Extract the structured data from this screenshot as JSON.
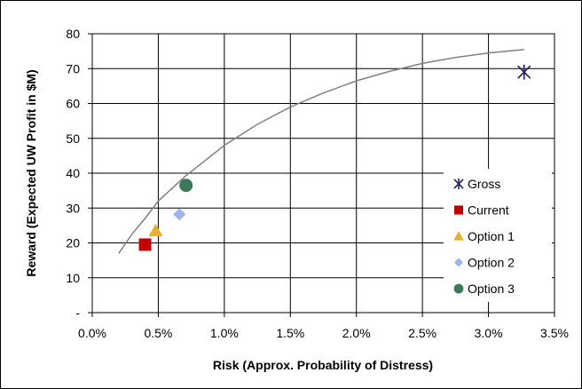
{
  "chart_data": {
    "type": "scatter",
    "xlabel": "Risk (Approx. Probability of Distress)",
    "ylabel": "Reward (Expected UW Profit in $M)",
    "xlim": [
      0.0,
      0.035
    ],
    "ylim": [
      0,
      80
    ],
    "x_ticks": [
      {
        "value": 0.0,
        "label": "0.0%"
      },
      {
        "value": 0.005,
        "label": "0.5%"
      },
      {
        "value": 0.01,
        "label": "1.0%"
      },
      {
        "value": 0.015,
        "label": "1.5%"
      },
      {
        "value": 0.02,
        "label": "2.0%"
      },
      {
        "value": 0.025,
        "label": "2.5%"
      },
      {
        "value": 0.03,
        "label": "3.0%"
      },
      {
        "value": 0.035,
        "label": "3.5%"
      }
    ],
    "y_ticks": [
      {
        "value": 0,
        "label": "-"
      },
      {
        "value": 10,
        "label": "10"
      },
      {
        "value": 20,
        "label": "20"
      },
      {
        "value": 30,
        "label": "30"
      },
      {
        "value": 40,
        "label": "40"
      },
      {
        "value": 50,
        "label": "50"
      },
      {
        "value": 60,
        "label": "60"
      },
      {
        "value": 70,
        "label": "70"
      },
      {
        "value": 80,
        "label": "80"
      }
    ],
    "grid": true,
    "legend_position": "right",
    "series": [
      {
        "name": "Gross",
        "marker": "star",
        "color": "#1f1f5c",
        "points": [
          {
            "x": 0.0327,
            "y": 69
          }
        ]
      },
      {
        "name": "Current",
        "marker": "square",
        "color": "#c00000",
        "points": [
          {
            "x": 0.004,
            "y": 19.5
          }
        ]
      },
      {
        "name": "Option 1",
        "marker": "triangle",
        "color": "#e8b030",
        "points": [
          {
            "x": 0.0048,
            "y": 23.5
          }
        ]
      },
      {
        "name": "Option 2",
        "marker": "diamond",
        "color": "#9db5e8",
        "points": [
          {
            "x": 0.0066,
            "y": 28.2
          }
        ]
      },
      {
        "name": "Option 3",
        "marker": "circle",
        "color": "#3a7a5a",
        "points": [
          {
            "x": 0.0071,
            "y": 36.5
          }
        ]
      }
    ],
    "frontier": {
      "color": "#808080",
      "points": [
        {
          "x": 0.002,
          "y": 17
        },
        {
          "x": 0.003,
          "y": 22.5
        },
        {
          "x": 0.004,
          "y": 27
        },
        {
          "x": 0.005,
          "y": 32
        },
        {
          "x": 0.006,
          "y": 35.5
        },
        {
          "x": 0.007,
          "y": 39
        },
        {
          "x": 0.008,
          "y": 42
        },
        {
          "x": 0.01,
          "y": 48
        },
        {
          "x": 0.0125,
          "y": 54
        },
        {
          "x": 0.015,
          "y": 59
        },
        {
          "x": 0.0175,
          "y": 63
        },
        {
          "x": 0.02,
          "y": 66.5
        },
        {
          "x": 0.0225,
          "y": 69.2
        },
        {
          "x": 0.025,
          "y": 71.5
        },
        {
          "x": 0.0275,
          "y": 73.2
        },
        {
          "x": 0.03,
          "y": 74.5
        },
        {
          "x": 0.0327,
          "y": 75.5
        }
      ]
    }
  }
}
